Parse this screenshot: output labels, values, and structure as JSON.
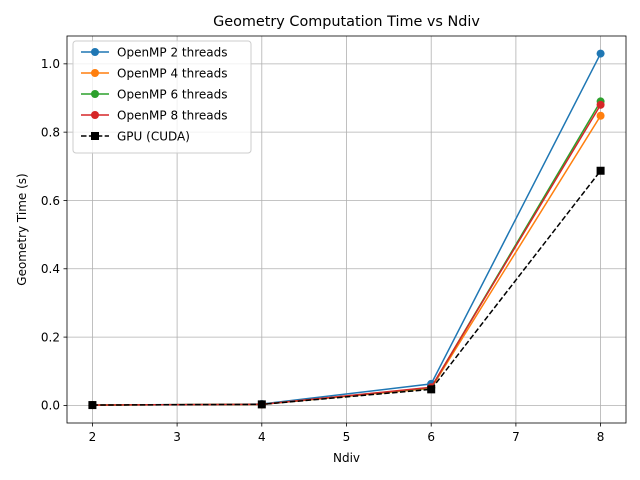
{
  "chart_data": {
    "type": "line",
    "title": "Geometry Computation Time vs Ndiv",
    "xlabel": "Ndiv",
    "ylabel": "Geometry Time (s)",
    "xlim": [
      1.7,
      8.3
    ],
    "ylim": [
      -0.0515,
      1.0815
    ],
    "xticks": [
      2,
      3,
      4,
      5,
      6,
      7,
      8
    ],
    "xtick_labels": [
      "2",
      "3",
      "4",
      "5",
      "6",
      "7",
      "8"
    ],
    "yticks": [
      0.0,
      0.2,
      0.4,
      0.6,
      0.8,
      1.0
    ],
    "ytick_labels": [
      "0.0",
      "0.2",
      "0.4",
      "0.6",
      "0.8",
      "1.0"
    ],
    "grid": true,
    "legend_position": "top-left",
    "x": [
      2,
      4,
      6,
      8
    ],
    "series": [
      {
        "name": "OpenMP 2 threads",
        "values": [
          0.001,
          0.004,
          0.063,
          1.03
        ],
        "color": "#1f77b4",
        "marker": "circle",
        "linestyle": "solid"
      },
      {
        "name": "OpenMP 4 threads",
        "values": [
          0.001,
          0.003,
          0.05,
          0.848
        ],
        "color": "#ff7f0e",
        "marker": "circle",
        "linestyle": "solid"
      },
      {
        "name": "OpenMP 6 threads",
        "values": [
          0.001,
          0.003,
          0.052,
          0.89
        ],
        "color": "#2ca02c",
        "marker": "circle",
        "linestyle": "solid"
      },
      {
        "name": "OpenMP 8 threads",
        "values": [
          0.001,
          0.003,
          0.053,
          0.88
        ],
        "color": "#d62728",
        "marker": "circle",
        "linestyle": "solid"
      },
      {
        "name": "GPU (CUDA)",
        "values": [
          0.001,
          0.003,
          0.047,
          0.687
        ],
        "color": "#000000",
        "marker": "square",
        "linestyle": "dashed"
      }
    ]
  }
}
